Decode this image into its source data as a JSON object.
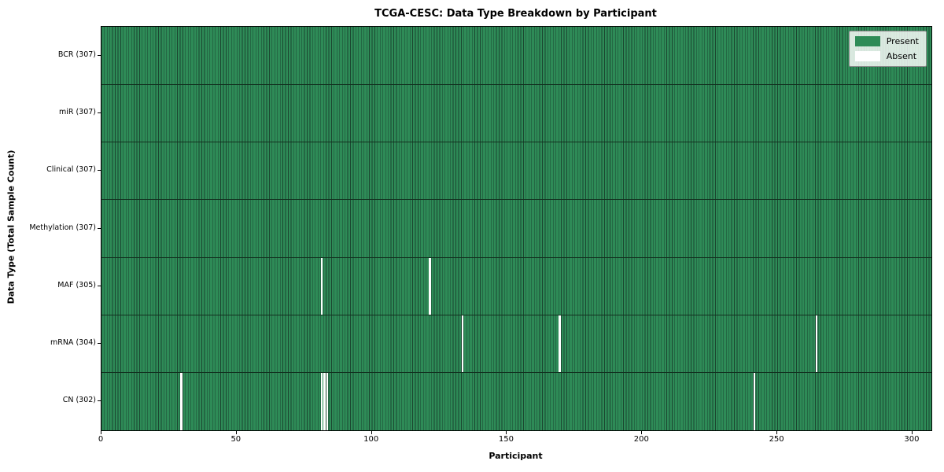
{
  "title": "TCGA-CESC: Data Type Breakdown by Participant",
  "chart_data": {
    "type": "heatmap",
    "title": "TCGA-CESC: Data Type Breakdown by Participant",
    "xlabel": "Participant",
    "ylabel": "Data Type (Total Sample Count)",
    "x_range": [
      0,
      307
    ],
    "x_ticks": [
      0,
      50,
      100,
      150,
      200,
      250,
      300
    ],
    "n_participants": 307,
    "grid": false,
    "legend_position": "upper right",
    "legend": [
      {
        "label": "Present",
        "color": "#2e8b57"
      },
      {
        "label": "Absent",
        "color": "#ffffff"
      }
    ],
    "colors": {
      "present": "#2e8b57",
      "absent": "#ffffff",
      "cell_edge": "#1b4630",
      "row_separator": "#12301f"
    },
    "rows": [
      {
        "name": "BCR",
        "label": "BCR (307)",
        "present_count": 307,
        "absent_participants": []
      },
      {
        "name": "miR",
        "label": "miR (307)",
        "present_count": 307,
        "absent_participants": []
      },
      {
        "name": "Clinical",
        "label": "Clinical (307)",
        "present_count": 307,
        "absent_participants": []
      },
      {
        "name": "Methylation",
        "label": "Methylation (307)",
        "present_count": 307,
        "absent_participants": []
      },
      {
        "name": "MAF",
        "label": "MAF (305)",
        "present_count": 305,
        "absent_participants": [
          81,
          121
        ]
      },
      {
        "name": "mRNA",
        "label": "mRNA (304)",
        "present_count": 304,
        "absent_participants": [
          133,
          169,
          264
        ]
      },
      {
        "name": "CN",
        "label": "CN (302)",
        "present_count": 302,
        "absent_participants": [
          29,
          81,
          82,
          83,
          241
        ]
      }
    ]
  }
}
